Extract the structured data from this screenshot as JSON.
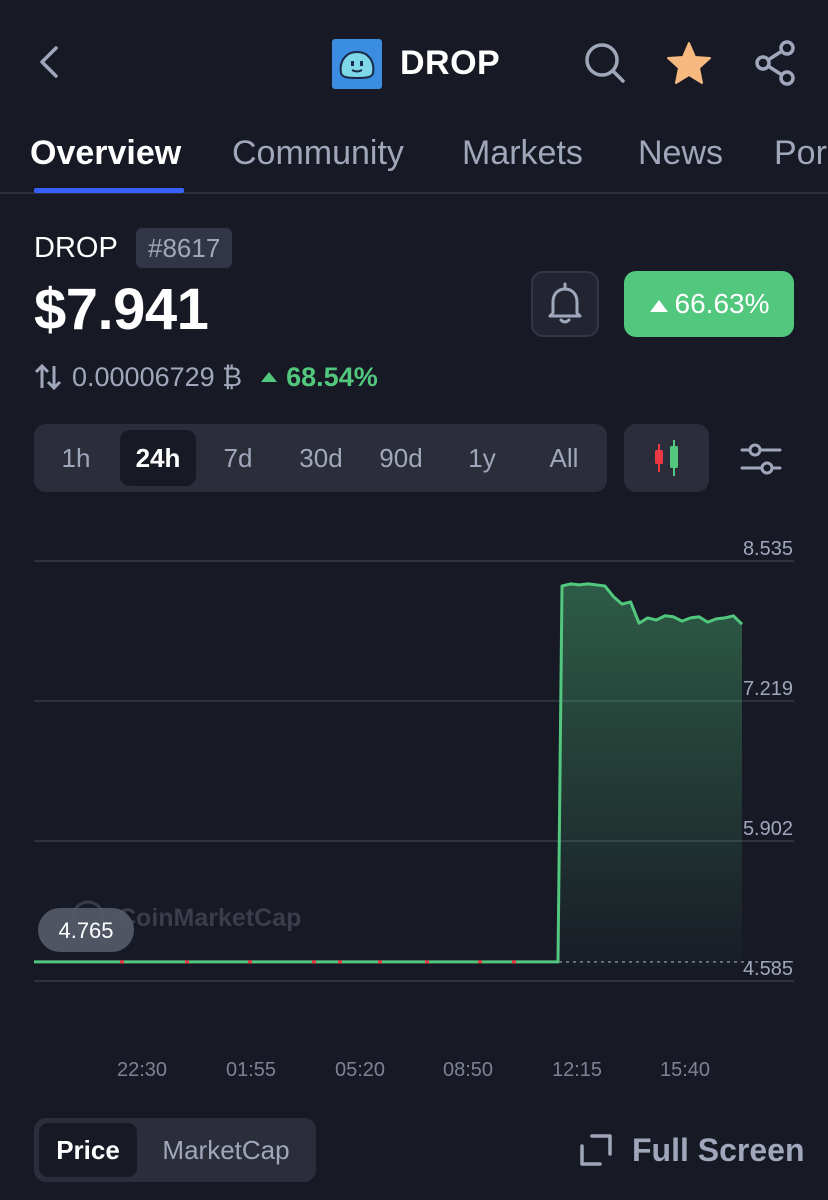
{
  "header": {
    "coin_name": "DROP",
    "icons": [
      "back-icon",
      "coin-logo",
      "search-icon",
      "star-icon",
      "share-icon"
    ],
    "star_color": "#f6b97f"
  },
  "tabs": [
    {
      "label": "Overview",
      "active": true
    },
    {
      "label": "Community",
      "active": false
    },
    {
      "label": "Markets",
      "active": false
    },
    {
      "label": "News",
      "active": false
    },
    {
      "label": "Por",
      "active": false
    }
  ],
  "coin": {
    "symbol": "DROP",
    "rank": "#8617",
    "price": "$7.941",
    "change_24h": "66.63%",
    "btc_price": "0.00006729 ₿",
    "btc_change": "68.54%"
  },
  "ranges": [
    {
      "label": "1h",
      "active": false
    },
    {
      "label": "24h",
      "active": true
    },
    {
      "label": "7d",
      "active": false
    },
    {
      "label": "30d",
      "active": false
    },
    {
      "label": "90d",
      "active": false
    },
    {
      "label": "1y",
      "active": false
    },
    {
      "label": "All",
      "active": false
    }
  ],
  "chart_data": {
    "type": "area",
    "watermark": "CoinMarketCap",
    "open_price_label": "4.765",
    "open_price": 4.765,
    "y_ticks": [
      "8.535",
      "7.219",
      "5.902",
      "4.585"
    ],
    "ylim": [
      4.585,
      8.535
    ],
    "x_ticks": [
      "22:30",
      "01:55",
      "05:20",
      "08:50",
      "12:15",
      "15:40"
    ],
    "line_color": "#52c77e",
    "series": [
      {
        "values": [
          4.765,
          4.765,
          4.765,
          4.765,
          4.765,
          4.765,
          4.765,
          4.765,
          4.765,
          4.765,
          4.765,
          4.765,
          4.765,
          4.765,
          4.765,
          4.765,
          4.765,
          4.765,
          8.3,
          8.32,
          8.31,
          8.32,
          8.31,
          8.3,
          8.2,
          8.13,
          8.15,
          7.95,
          8.0,
          7.98,
          8.02,
          8.01,
          7.97,
          8.0,
          8.01,
          7.96,
          7.99,
          8.0,
          8.02,
          7.941
        ]
      }
    ]
  },
  "bottom": {
    "seg": [
      {
        "label": "Price",
        "active": true
      },
      {
        "label": "MarketCap",
        "active": false
      }
    ],
    "fullscreen_label": "Full Screen"
  }
}
